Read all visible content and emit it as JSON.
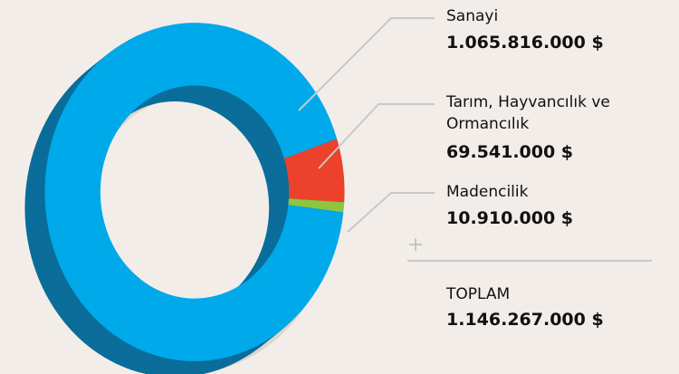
{
  "chart_data": {
    "type": "pie",
    "categories": [
      "Sanayi",
      "Tarım, Hayvancılık ve Ormancılık",
      "Madencilik"
    ],
    "values": [
      1065816000,
      69541000,
      10910000
    ],
    "value_labels": [
      "1.065.816.000 $",
      "69.541.000 $",
      "10.910.000 $"
    ],
    "colors": [
      "#00a9ea",
      "#ec412a",
      "#8cc63f"
    ],
    "total_title": "TOPLAM",
    "total": 1146267000,
    "total_label": "1.146.267.000 $"
  }
}
